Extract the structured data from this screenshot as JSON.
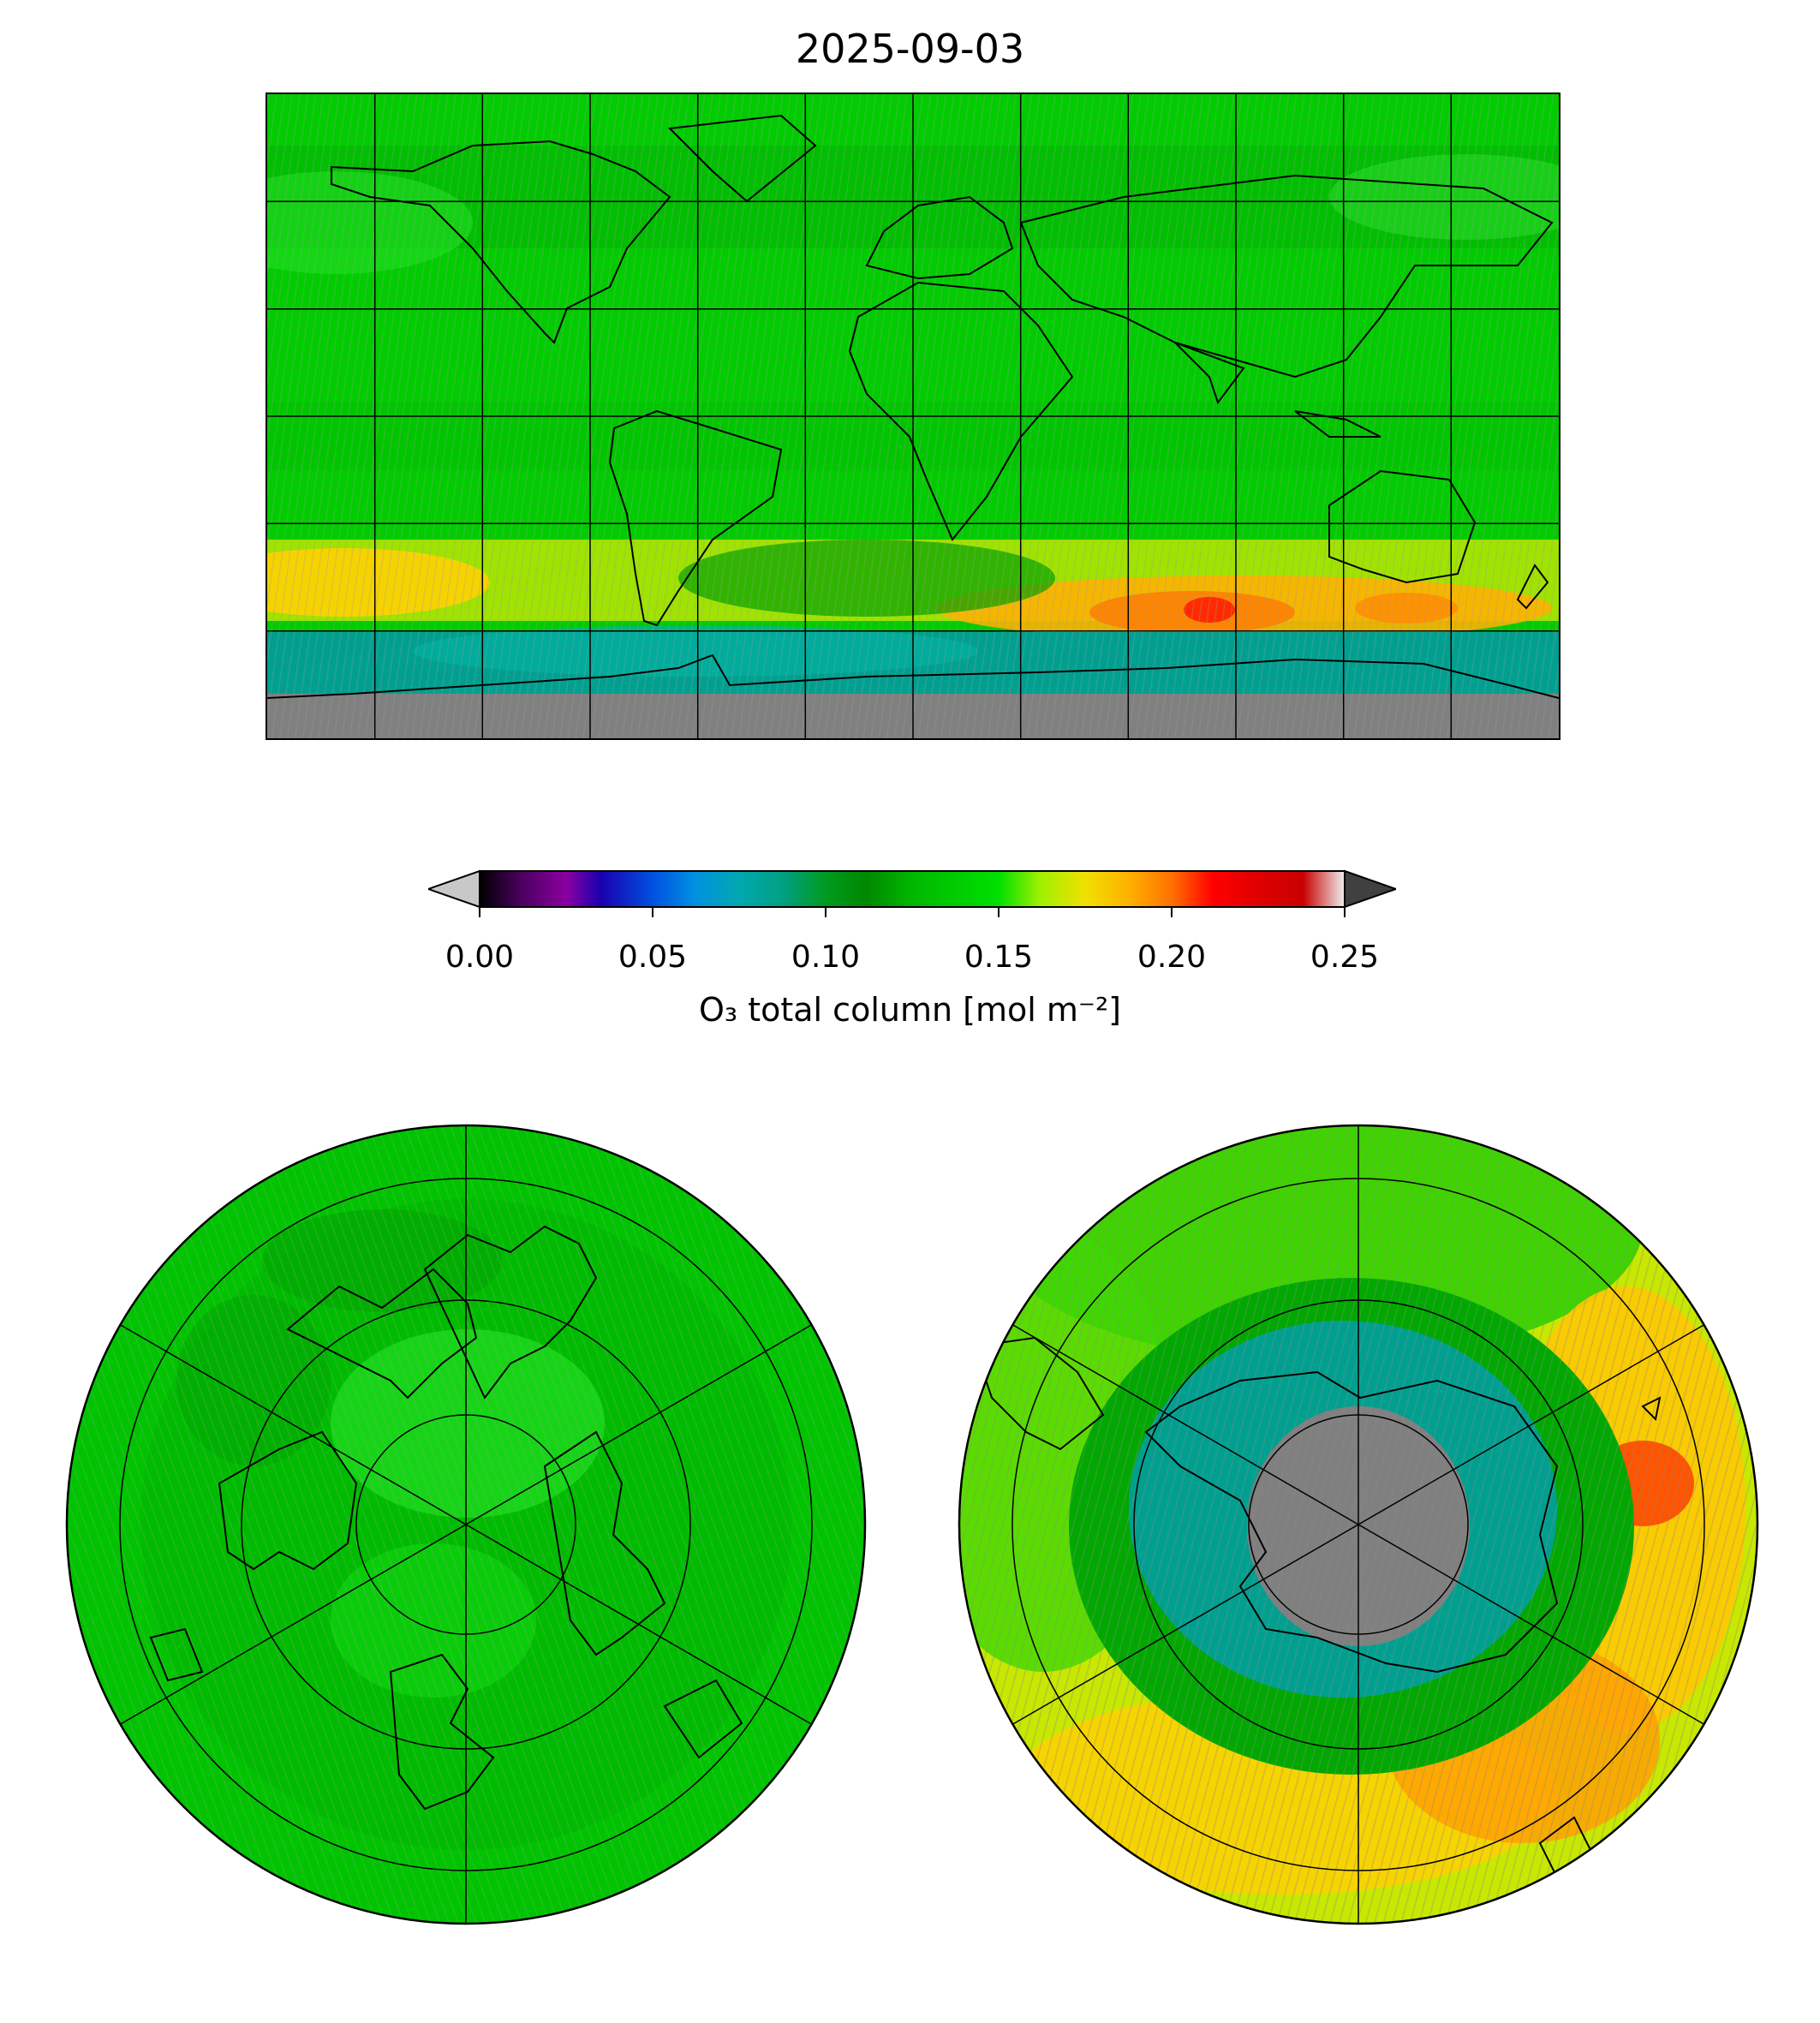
{
  "title": "2025-09-03",
  "colorbar": {
    "label": "O₃ total column [mol m⁻²]",
    "ticks": [
      "0.00",
      "0.05",
      "0.10",
      "0.15",
      "0.20",
      "0.25"
    ],
    "vmin": 0.0,
    "vmax": 0.25,
    "extend": "both",
    "under_color": "#c8c8c8",
    "over_color": "#404040",
    "stops": [
      {
        "value": 0.0,
        "color": "#000000"
      },
      {
        "value": 0.012,
        "color": "#4b0060"
      },
      {
        "value": 0.025,
        "color": "#8a00a0"
      },
      {
        "value": 0.035,
        "color": "#1a00b0"
      },
      {
        "value": 0.05,
        "color": "#0050e0"
      },
      {
        "value": 0.062,
        "color": "#0090e0"
      },
      {
        "value": 0.075,
        "color": "#00a8b0"
      },
      {
        "value": 0.088,
        "color": "#00a080"
      },
      {
        "value": 0.1,
        "color": "#009a20"
      },
      {
        "value": 0.112,
        "color": "#008800"
      },
      {
        "value": 0.125,
        "color": "#00b800"
      },
      {
        "value": 0.15,
        "color": "#00e000"
      },
      {
        "value": 0.162,
        "color": "#a0f000"
      },
      {
        "value": 0.175,
        "color": "#f0e000"
      },
      {
        "value": 0.188,
        "color": "#ffb000"
      },
      {
        "value": 0.2,
        "color": "#ff7000"
      },
      {
        "value": 0.212,
        "color": "#ff0000"
      },
      {
        "value": 0.225,
        "color": "#e00000"
      },
      {
        "value": 0.238,
        "color": "#c80000"
      },
      {
        "value": 0.25,
        "color": "#f0f0f0"
      }
    ]
  },
  "colors": {
    "background_green": "#00cc00",
    "missing_data": "#808080",
    "ozone_hole_teal": "#00a090",
    "high_orange": "#ffa000",
    "coastline": "#000000"
  },
  "panels": {
    "global": {
      "projection": "PlateCarree",
      "gridlines": "30° spacing"
    },
    "north": {
      "projection": "North Polar Stereographic",
      "gridlines": "meridians every 60°, parallels"
    },
    "south": {
      "projection": "South Polar Stereographic",
      "gridlines": "meridians every 60°, parallels"
    }
  }
}
